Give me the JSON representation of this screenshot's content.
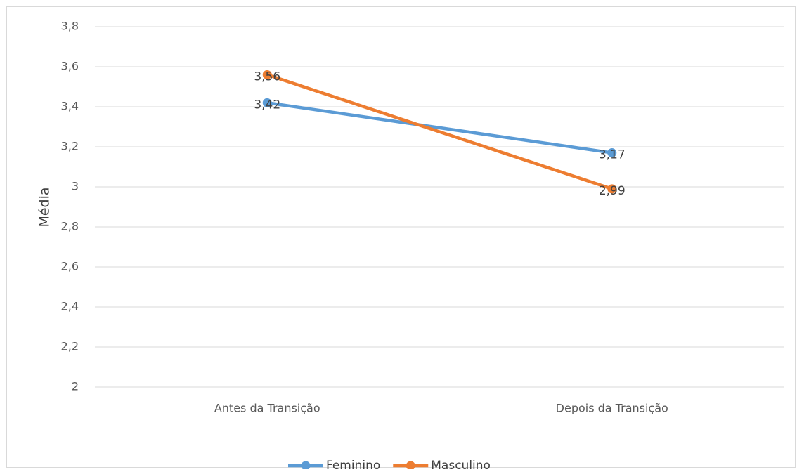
{
  "chart_data": {
    "type": "line",
    "y_label": "Média",
    "categories": [
      "Antes da Transição",
      "Depois da Transição"
    ],
    "series": [
      {
        "name": "Feminino",
        "color": "#5b9bd5",
        "values": [
          3.42,
          3.17
        ],
        "value_labels": [
          "3,42",
          "3,17"
        ]
      },
      {
        "name": "Masculino",
        "color": "#ed7d31",
        "values": [
          3.56,
          2.99
        ],
        "value_labels": [
          "3,56",
          "2,99"
        ]
      }
    ],
    "ylim": [
      2,
      3.8
    ],
    "yticks": [
      2,
      {
        "value": 2.2,
        "label": "2,2"
      },
      {
        "value": 2.4,
        "label": "2,4"
      },
      {
        "value": 2.6,
        "label": "2,6"
      },
      {
        "value": 2.8,
        "label": "2,8"
      },
      3,
      {
        "value": 3.2,
        "label": "3,2"
      },
      {
        "value": 3.4,
        "label": "3,4"
      },
      {
        "value": 3.6,
        "label": "3,6"
      },
      {
        "value": 3.8,
        "label": "3,8"
      }
    ],
    "grid": true,
    "legend": "bottom"
  }
}
